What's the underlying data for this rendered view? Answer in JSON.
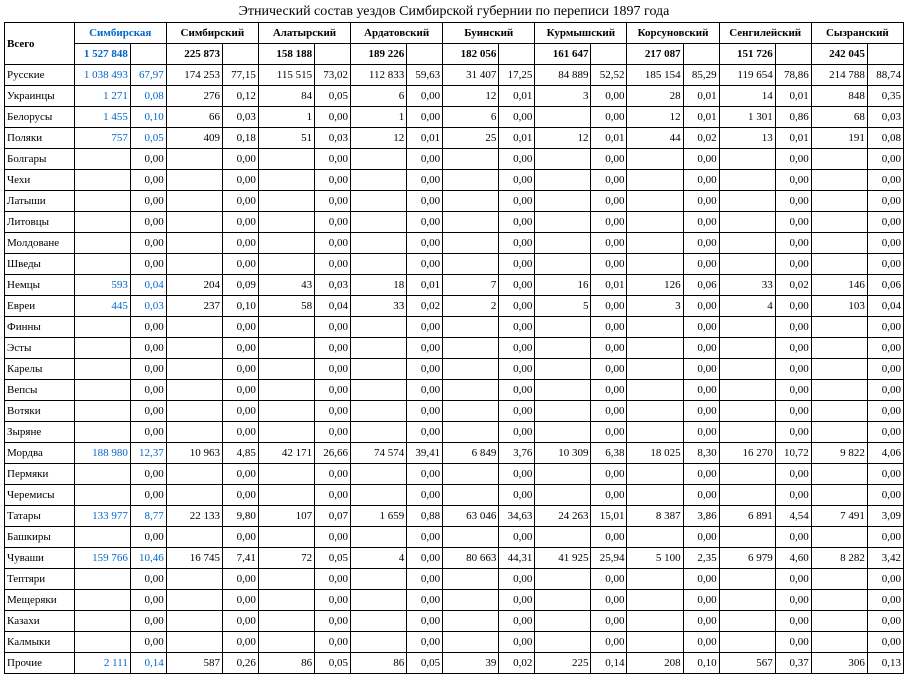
{
  "title": "Этнический состав уездов Симбирской губернии по переписи 1897 года",
  "total_label": "Всего",
  "columns": [
    "Симбирская",
    "Симбирский",
    "Алатырский",
    "Ардатовский",
    "Буинский",
    "Курмышский",
    "Корсуновский",
    "Сенгилейский",
    "Сызранский"
  ],
  "totals": [
    "1 527 848",
    "225 873",
    "158 188",
    "189 226",
    "182 056",
    "161 647",
    "217 087",
    "151 726",
    "242 045"
  ],
  "link_first_col": true,
  "rows": [
    {
      "label": "Русские",
      "n": [
        "1 038 493",
        "174 253",
        "115 515",
        "112 833",
        "31 407",
        "84 889",
        "185 154",
        "119 654",
        "214 788"
      ],
      "p": [
        "67,97",
        "77,15",
        "73,02",
        "59,63",
        "17,25",
        "52,52",
        "85,29",
        "78,86",
        "88,74"
      ]
    },
    {
      "label": "Украинцы",
      "n": [
        "1 271",
        "276",
        "84",
        "6",
        "12",
        "3",
        "28",
        "14",
        "848"
      ],
      "p": [
        "0,08",
        "0,12",
        "0,05",
        "0,00",
        "0,01",
        "0,00",
        "0,01",
        "0,01",
        "0,35"
      ]
    },
    {
      "label": "Белорусы",
      "n": [
        "1 455",
        "66",
        "1",
        "1",
        "6",
        "",
        "12",
        "1 301",
        "68"
      ],
      "p": [
        "0,10",
        "0,03",
        "0,00",
        "0,00",
        "0,00",
        "0,00",
        "0,01",
        "0,86",
        "0,03"
      ]
    },
    {
      "label": "Поляки",
      "n": [
        "757",
        "409",
        "51",
        "12",
        "25",
        "12",
        "44",
        "13",
        "191"
      ],
      "p": [
        "0,05",
        "0,18",
        "0,03",
        "0,01",
        "0,01",
        "0,01",
        "0,02",
        "0,01",
        "0,08"
      ]
    },
    {
      "label": "Болгары",
      "n": [
        "",
        "",
        "",
        "",
        "",
        "",
        "",
        "",
        ""
      ],
      "p": [
        "0,00",
        "0,00",
        "0,00",
        "0,00",
        "0,00",
        "0,00",
        "0,00",
        "0,00",
        "0,00"
      ]
    },
    {
      "label": "Чехи",
      "n": [
        "",
        "",
        "",
        "",
        "",
        "",
        "",
        "",
        ""
      ],
      "p": [
        "0,00",
        "0,00",
        "0,00",
        "0,00",
        "0,00",
        "0,00",
        "0,00",
        "0,00",
        "0,00"
      ]
    },
    {
      "label": "Латыши",
      "n": [
        "",
        "",
        "",
        "",
        "",
        "",
        "",
        "",
        ""
      ],
      "p": [
        "0,00",
        "0,00",
        "0,00",
        "0,00",
        "0,00",
        "0,00",
        "0,00",
        "0,00",
        "0,00"
      ]
    },
    {
      "label": "Литовцы",
      "n": [
        "",
        "",
        "",
        "",
        "",
        "",
        "",
        "",
        ""
      ],
      "p": [
        "0,00",
        "0,00",
        "0,00",
        "0,00",
        "0,00",
        "0,00",
        "0,00",
        "0,00",
        "0,00"
      ]
    },
    {
      "label": "Молдоване",
      "n": [
        "",
        "",
        "",
        "",
        "",
        "",
        "",
        "",
        ""
      ],
      "p": [
        "0,00",
        "0,00",
        "0,00",
        "0,00",
        "0,00",
        "0,00",
        "0,00",
        "0,00",
        "0,00"
      ]
    },
    {
      "label": "Шведы",
      "n": [
        "",
        "",
        "",
        "",
        "",
        "",
        "",
        "",
        ""
      ],
      "p": [
        "0,00",
        "0,00",
        "0,00",
        "0,00",
        "0,00",
        "0,00",
        "0,00",
        "0,00",
        "0,00"
      ]
    },
    {
      "label": "Немцы",
      "n": [
        "593",
        "204",
        "43",
        "18",
        "7",
        "16",
        "126",
        "33",
        "146"
      ],
      "p": [
        "0,04",
        "0,09",
        "0,03",
        "0,01",
        "0,00",
        "0,01",
        "0,06",
        "0,02",
        "0,06"
      ]
    },
    {
      "label": "Евреи",
      "n": [
        "445",
        "237",
        "58",
        "33",
        "2",
        "5",
        "3",
        "4",
        "103"
      ],
      "p": [
        "0,03",
        "0,10",
        "0,04",
        "0,02",
        "0,00",
        "0,00",
        "0,00",
        "0,00",
        "0,04"
      ]
    },
    {
      "label": "Финны",
      "n": [
        "",
        "",
        "",
        "",
        "",
        "",
        "",
        "",
        ""
      ],
      "p": [
        "0,00",
        "0,00",
        "0,00",
        "0,00",
        "0,00",
        "0,00",
        "0,00",
        "0,00",
        "0,00"
      ]
    },
    {
      "label": "Эсты",
      "n": [
        "",
        "",
        "",
        "",
        "",
        "",
        "",
        "",
        ""
      ],
      "p": [
        "0,00",
        "0,00",
        "0,00",
        "0,00",
        "0,00",
        "0,00",
        "0,00",
        "0,00",
        "0,00"
      ]
    },
    {
      "label": "Карелы",
      "n": [
        "",
        "",
        "",
        "",
        "",
        "",
        "",
        "",
        ""
      ],
      "p": [
        "0,00",
        "0,00",
        "0,00",
        "0,00",
        "0,00",
        "0,00",
        "0,00",
        "0,00",
        "0,00"
      ]
    },
    {
      "label": "Вепсы",
      "n": [
        "",
        "",
        "",
        "",
        "",
        "",
        "",
        "",
        ""
      ],
      "p": [
        "0,00",
        "0,00",
        "0,00",
        "0,00",
        "0,00",
        "0,00",
        "0,00",
        "0,00",
        "0,00"
      ]
    },
    {
      "label": "Вотяки",
      "n": [
        "",
        "",
        "",
        "",
        "",
        "",
        "",
        "",
        ""
      ],
      "p": [
        "0,00",
        "0,00",
        "0,00",
        "0,00",
        "0,00",
        "0,00",
        "0,00",
        "0,00",
        "0,00"
      ]
    },
    {
      "label": "Зыряне",
      "n": [
        "",
        "",
        "",
        "",
        "",
        "",
        "",
        "",
        ""
      ],
      "p": [
        "0,00",
        "0,00",
        "0,00",
        "0,00",
        "0,00",
        "0,00",
        "0,00",
        "0,00",
        "0,00"
      ]
    },
    {
      "label": "Мордва",
      "n": [
        "188 980",
        "10 963",
        "42 171",
        "74 574",
        "6 849",
        "10 309",
        "18 025",
        "16 270",
        "9 822"
      ],
      "p": [
        "12,37",
        "4,85",
        "26,66",
        "39,41",
        "3,76",
        "6,38",
        "8,30",
        "10,72",
        "4,06"
      ]
    },
    {
      "label": "Пермяки",
      "n": [
        "",
        "",
        "",
        "",
        "",
        "",
        "",
        "",
        ""
      ],
      "p": [
        "0,00",
        "0,00",
        "0,00",
        "0,00",
        "0,00",
        "0,00",
        "0,00",
        "0,00",
        "0,00"
      ]
    },
    {
      "label": "Черемисы",
      "n": [
        "",
        "",
        "",
        "",
        "",
        "",
        "",
        "",
        ""
      ],
      "p": [
        "0,00",
        "0,00",
        "0,00",
        "0,00",
        "0,00",
        "0,00",
        "0,00",
        "0,00",
        "0,00"
      ]
    },
    {
      "label": "Татары",
      "n": [
        "133 977",
        "22 133",
        "107",
        "1 659",
        "63 046",
        "24 263",
        "8 387",
        "6 891",
        "7 491"
      ],
      "p": [
        "8,77",
        "9,80",
        "0,07",
        "0,88",
        "34,63",
        "15,01",
        "3,86",
        "4,54",
        "3,09"
      ]
    },
    {
      "label": "Башкиры",
      "n": [
        "",
        "",
        "",
        "",
        "",
        "",
        "",
        "",
        ""
      ],
      "p": [
        "0,00",
        "0,00",
        "0,00",
        "0,00",
        "0,00",
        "0,00",
        "0,00",
        "0,00",
        "0,00"
      ]
    },
    {
      "label": "Чуваши",
      "n": [
        "159 766",
        "16 745",
        "72",
        "4",
        "80 663",
        "41 925",
        "5 100",
        "6 979",
        "8 282"
      ],
      "p": [
        "10,46",
        "7,41",
        "0,05",
        "0,00",
        "44,31",
        "25,94",
        "2,35",
        "4,60",
        "3,42"
      ]
    },
    {
      "label": "Тептяри",
      "n": [
        "",
        "",
        "",
        "",
        "",
        "",
        "",
        "",
        ""
      ],
      "p": [
        "0,00",
        "0,00",
        "0,00",
        "0,00",
        "0,00",
        "0,00",
        "0,00",
        "0,00",
        "0,00"
      ]
    },
    {
      "label": "Мещеряки",
      "n": [
        "",
        "",
        "",
        "",
        "",
        "",
        "",
        "",
        ""
      ],
      "p": [
        "0,00",
        "0,00",
        "0,00",
        "0,00",
        "0,00",
        "0,00",
        "0,00",
        "0,00",
        "0,00"
      ]
    },
    {
      "label": "Казахи",
      "n": [
        "",
        "",
        "",
        "",
        "",
        "",
        "",
        "",
        ""
      ],
      "p": [
        "0,00",
        "0,00",
        "0,00",
        "0,00",
        "0,00",
        "0,00",
        "0,00",
        "0,00",
        "0,00"
      ]
    },
    {
      "label": "Калмыки",
      "n": [
        "",
        "",
        "",
        "",
        "",
        "",
        "",
        "",
        ""
      ],
      "p": [
        "0,00",
        "0,00",
        "0,00",
        "0,00",
        "0,00",
        "0,00",
        "0,00",
        "0,00",
        "0,00"
      ]
    },
    {
      "label": "Прочие",
      "n": [
        "2 111",
        "587",
        "86",
        "86",
        "39",
        "225",
        "208",
        "567",
        "306"
      ],
      "p": [
        "0,14",
        "0,26",
        "0,05",
        "0,05",
        "0,02",
        "0,14",
        "0,10",
        "0,37",
        "0,13"
      ]
    }
  ]
}
